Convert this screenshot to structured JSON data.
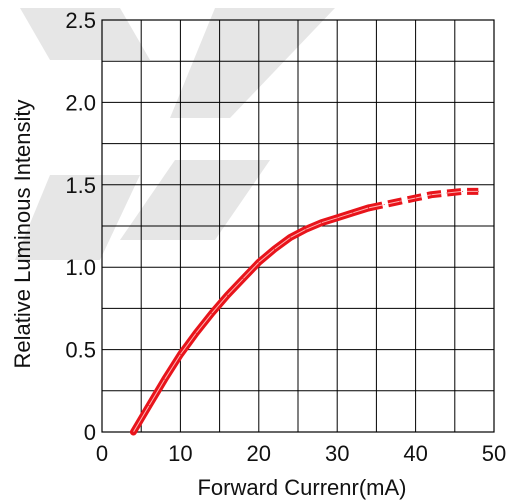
{
  "chart_data": {
    "type": "line",
    "xlabel": "Forward Currenr(mA)",
    "ylabel": "Relative Luminous Intensity",
    "xlim": [
      0,
      50
    ],
    "ylim": [
      0,
      2.5
    ],
    "x_ticks": [
      0,
      10,
      20,
      30,
      40,
      50
    ],
    "x_tick_labels": [
      "0",
      "10",
      "20",
      "30",
      "40",
      "50"
    ],
    "y_ticks": [
      0,
      0.5,
      1.0,
      1.5,
      2.0,
      2.5
    ],
    "y_tick_labels": [
      "0",
      "0.5",
      "1.0",
      "1.5",
      "2.0",
      "2.5"
    ],
    "x_grid_step": 5,
    "y_grid_step": 0.25,
    "grid": true,
    "series": [
      {
        "color": "#e8141b",
        "style": "solid",
        "points": [
          [
            4,
            0
          ],
          [
            6,
            0.16
          ],
          [
            8,
            0.32
          ],
          [
            10,
            0.47
          ],
          [
            12,
            0.6
          ],
          [
            14,
            0.72
          ],
          [
            16,
            0.83
          ],
          [
            18,
            0.93
          ],
          [
            20,
            1.03
          ],
          [
            22,
            1.11
          ],
          [
            24,
            1.18
          ],
          [
            26,
            1.23
          ],
          [
            28,
            1.27
          ],
          [
            30,
            1.3
          ],
          [
            32,
            1.33
          ],
          [
            34,
            1.36
          ]
        ]
      },
      {
        "color": "#e8141b",
        "style": "dashed",
        "points": [
          [
            34,
            1.36
          ],
          [
            36,
            1.38
          ],
          [
            38,
            1.4
          ],
          [
            40,
            1.42
          ],
          [
            42,
            1.44
          ],
          [
            44,
            1.45
          ],
          [
            46,
            1.46
          ],
          [
            48,
            1.46
          ]
        ]
      }
    ]
  }
}
